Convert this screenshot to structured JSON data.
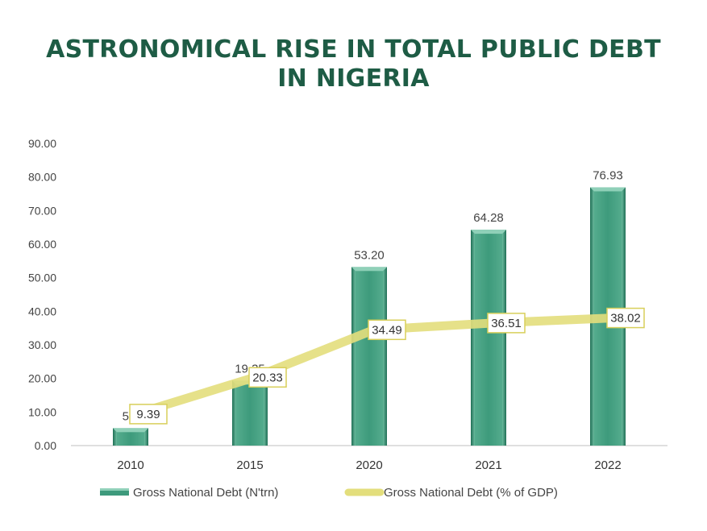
{
  "title": "ASTRONOMICAL RISE IN TOTAL PUBLIC DEBT IN NIGERIA",
  "colors": {
    "title": "#1e5c45",
    "bar": "#3e9a7c",
    "bar_dark": "#1f6e55",
    "bar_light": "#8fd0b8",
    "line": "#e3de7c",
    "label_border": "#d8cf5a",
    "axis": "#bfbfbf"
  },
  "chart_data": {
    "type": "bar",
    "categories": [
      "2010",
      "2015",
      "2020",
      "2021",
      "2022"
    ],
    "series": [
      {
        "name": "Gross National Debt (N'trn)",
        "type": "bar",
        "values": [
          5.2,
          19.35,
          53.2,
          64.28,
          76.93
        ],
        "labels": [
          "5.2",
          "19.35",
          "53.20",
          "64.28",
          "76.93"
        ]
      },
      {
        "name": "Gross National Debt (% of GDP)",
        "type": "line",
        "values": [
          9.39,
          20.33,
          34.49,
          36.51,
          38.02
        ],
        "labels": [
          "9.39",
          "20.33",
          "34.49",
          "36.51",
          "38.02"
        ]
      }
    ],
    "ylim": [
      0,
      90
    ],
    "yticks": [
      "0.00",
      "10.00",
      "20.00",
      "30.00",
      "40.00",
      "50.00",
      "60.00",
      "70.00",
      "80.00",
      "90.00"
    ],
    "xlabel": "",
    "ylabel": "",
    "grid": false,
    "legend": "bottom"
  }
}
